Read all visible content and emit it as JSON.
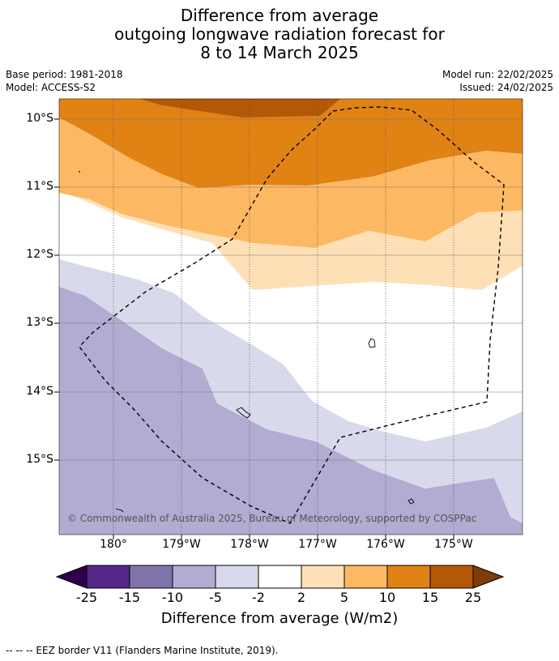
{
  "title": {
    "line1": "Difference from average",
    "line2": "outgoing longwave radiation forecast for",
    "line3": "8 to 14 March 2025"
  },
  "meta": {
    "base_period": "Base period: 1981-2018",
    "model": "Model: ACCESS-S2",
    "model_run": "Model run: 22/02/2025",
    "issued": "Issued: 24/02/2025"
  },
  "map": {
    "lat_labels": [
      "10°S",
      "11°S",
      "12°S",
      "13°S",
      "14°S",
      "15°S"
    ],
    "lon_labels": [
      "180°",
      "179°W",
      "178°W",
      "177°W",
      "176°W",
      "175°W"
    ],
    "copyright": "© Commonwealth of Australia 2025, Bureau of Meteorology, supported by COSPPac",
    "colors": {
      "orange_dark": "#e0821a",
      "orange_darker": "#b35806",
      "orange_mid": "#fdb863",
      "orange_light": "#fee0b6",
      "lavender_light": "#d8daeb",
      "lavender": "#b2abd2"
    }
  },
  "colorbar": {
    "title": "Difference from average (W/m2)",
    "ticks": [
      "-25",
      "-15",
      "-10",
      "-5",
      "-2",
      "2",
      "5",
      "10",
      "15",
      "25"
    ],
    "colors": [
      "#2d004b",
      "#542788",
      "#8073ac",
      "#b2abd2",
      "#d8daeb",
      "#ffffff",
      "#fee0b6",
      "#fdb863",
      "#e08214",
      "#b35806",
      "#7f3b08"
    ]
  },
  "footnote": "--  --  -- EEZ border V11 (Flanders Marine Institute, 2019)."
}
